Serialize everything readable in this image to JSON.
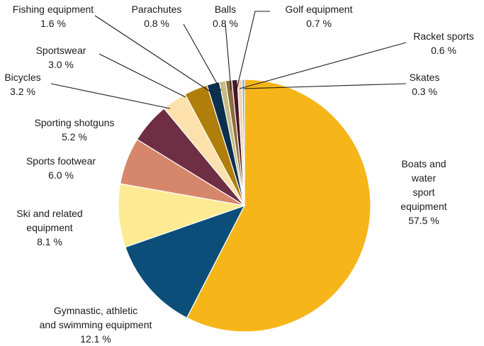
{
  "chart_data": {
    "type": "pie",
    "title": "",
    "unit": "%",
    "slices": [
      {
        "name": "Boats and water sport equipment",
        "label_lines": [
          "Boats and",
          "water",
          "sport",
          "equipment"
        ],
        "value": 57.5,
        "value_text": "57.5 %",
        "color": "#F6B519"
      },
      {
        "name": "Gymnastic, athletic and swimming equipment",
        "label_lines": [
          "Gymnastic, athletic",
          "and swimming equipment"
        ],
        "value": 12.1,
        "value_text": "12.1 %",
        "color": "#0C4E7A"
      },
      {
        "name": "Ski and related equipment",
        "label_lines": [
          "Ski and related",
          "equipment"
        ],
        "value": 8.1,
        "value_text": "8.1 %",
        "color": "#FCEB92"
      },
      {
        "name": "Sports footwear",
        "label_lines": [
          "Sports footwear"
        ],
        "value": 6.0,
        "value_text": "6.0 %",
        "color": "#D6876B"
      },
      {
        "name": "Sporting shotguns",
        "label_lines": [
          "Sporting shotguns"
        ],
        "value": 5.2,
        "value_text": "5.2 %",
        "color": "#6E2F45"
      },
      {
        "name": "Bicycles",
        "label_lines": [
          "Bicycles"
        ],
        "value": 3.2,
        "value_text": "3.2 %",
        "color": "#FDE1AC"
      },
      {
        "name": "Sportswear",
        "label_lines": [
          "Sportswear"
        ],
        "value": 3.0,
        "value_text": "3.0 %",
        "color": "#B07E0B"
      },
      {
        "name": "Fishing equipment",
        "label_lines": [
          "Fishing equipment"
        ],
        "value": 1.6,
        "value_text": "1.6 %",
        "color": "#0B2F4F"
      },
      {
        "name": "Parachutes",
        "label_lines": [
          "Parachutes"
        ],
        "value": 0.8,
        "value_text": "0.8 %",
        "color": "#C4BE84"
      },
      {
        "name": "Balls",
        "label_lines": [
          "Balls"
        ],
        "value": 0.8,
        "value_text": "0.8 %",
        "color": "#8E6C3E"
      },
      {
        "name": "Golf equipment",
        "label_lines": [
          "Golf equipment"
        ],
        "value": 0.7,
        "value_text": "0.7 %",
        "color": "#4A1524"
      },
      {
        "name": "Racket sports",
        "label_lines": [
          "Racket sports"
        ],
        "value": 0.6,
        "value_text": "0.6 %",
        "color": "#F2D5B4"
      },
      {
        "name": "Skates",
        "label_lines": [
          "Skates"
        ],
        "value": 0.3,
        "value_text": "0.3 %",
        "color": "#7EA6D1"
      }
    ]
  }
}
